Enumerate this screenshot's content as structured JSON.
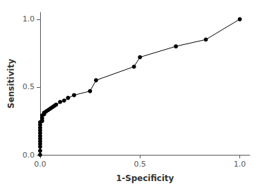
{
  "chart_data": {
    "type": "line",
    "xlabel": "1-Specificity",
    "ylabel": "Sensitivity",
    "x": [
      0.0,
      0.0,
      0.0,
      0.0,
      0.0,
      0.0,
      0.0,
      0.0,
      0.0,
      0.0,
      0.0,
      0.0,
      0.01,
      0.01,
      0.01,
      0.02,
      0.02,
      0.03,
      0.04,
      0.05,
      0.06,
      0.07,
      0.08,
      0.1,
      0.12,
      0.14,
      0.17,
      0.25,
      0.28,
      0.47,
      0.5,
      0.68,
      0.83,
      1.0
    ],
    "values": [
      0.0,
      0.03,
      0.06,
      0.08,
      0.1,
      0.12,
      0.14,
      0.16,
      0.18,
      0.2,
      0.22,
      0.24,
      0.25,
      0.27,
      0.29,
      0.3,
      0.31,
      0.32,
      0.33,
      0.34,
      0.35,
      0.36,
      0.37,
      0.39,
      0.4,
      0.42,
      0.44,
      0.47,
      0.55,
      0.65,
      0.72,
      0.8,
      0.85,
      1.0
    ],
    "color": "#000000",
    "marker": "circle",
    "xlim": [
      0.0,
      1.05
    ],
    "ylim": [
      0.0,
      1.05
    ],
    "xticks": [
      {
        "value": 0.0,
        "label": "0.0"
      },
      0.5,
      {
        "value": 1.0,
        "label": "1.0"
      }
    ],
    "yticks": [
      {
        "value": 0.0,
        "label": "0.0"
      },
      0.5,
      {
        "value": 1.0,
        "label": "1.0"
      }
    ],
    "grid": false
  }
}
